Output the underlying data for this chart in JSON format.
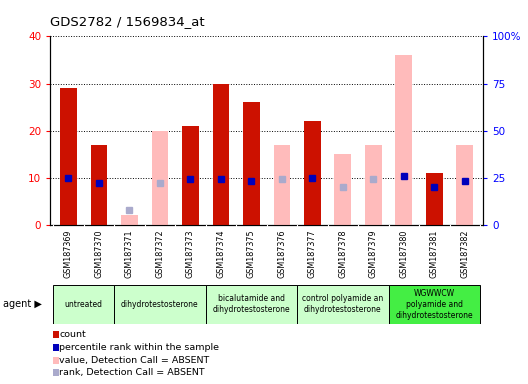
{
  "title": "GDS2782 / 1569834_at",
  "samples": [
    "GSM187369",
    "GSM187370",
    "GSM187371",
    "GSM187372",
    "GSM187373",
    "GSM187374",
    "GSM187375",
    "GSM187376",
    "GSM187377",
    "GSM187378",
    "GSM187379",
    "GSM187380",
    "GSM187381",
    "GSM187382"
  ],
  "count_present": [
    29,
    17,
    null,
    null,
    21,
    30,
    26,
    null,
    22,
    null,
    null,
    null,
    11,
    null
  ],
  "count_absent": [
    null,
    null,
    2,
    20,
    null,
    null,
    null,
    17,
    null,
    15,
    17,
    36,
    null,
    17
  ],
  "rank_present": [
    25,
    22,
    null,
    null,
    24,
    24,
    23,
    null,
    25,
    null,
    null,
    26,
    20,
    23
  ],
  "rank_absent": [
    null,
    null,
    8,
    22,
    null,
    null,
    null,
    24,
    null,
    20,
    24,
    null,
    null,
    null
  ],
  "agent_groups": [
    {
      "label": "untreated",
      "start": 0,
      "end": 1,
      "color": "#ccffcc"
    },
    {
      "label": "dihydrotestosterone",
      "start": 2,
      "end": 4,
      "color": "#ccffcc"
    },
    {
      "label": "bicalutamide and\ndihydrotestosterone",
      "start": 5,
      "end": 7,
      "color": "#ccffcc"
    },
    {
      "label": "control polyamide an\ndihydrotestosterone",
      "start": 8,
      "end": 10,
      "color": "#ccffcc"
    },
    {
      "label": "WGWWCW\npolyamide and\ndihydrotestosterone",
      "start": 11,
      "end": 13,
      "color": "#44ee44"
    }
  ],
  "ylim_left": [
    0,
    40
  ],
  "ylim_right": [
    0,
    100
  ],
  "yticks_left": [
    0,
    10,
    20,
    30,
    40
  ],
  "ytick_labels_left": [
    "0",
    "10",
    "20",
    "30",
    "40"
  ],
  "yticks_right": [
    0,
    25,
    50,
    75,
    100
  ],
  "ytick_labels_right": [
    "0",
    "25",
    "50",
    "75",
    "100%"
  ],
  "bar_width": 0.55,
  "count_color_present": "#cc1100",
  "count_color_absent": "#ffbbbb",
  "rank_color_present": "#0000bb",
  "rank_color_absent": "#aaaacc",
  "bg_color": "#cccccc",
  "plot_bg": "#ffffff",
  "legend_items": [
    {
      "label": "count",
      "color": "#cc1100"
    },
    {
      "label": "percentile rank within the sample",
      "color": "#0000bb"
    },
    {
      "label": "value, Detection Call = ABSENT",
      "color": "#ffbbbb"
    },
    {
      "label": "rank, Detection Call = ABSENT",
      "color": "#aaaacc"
    }
  ]
}
